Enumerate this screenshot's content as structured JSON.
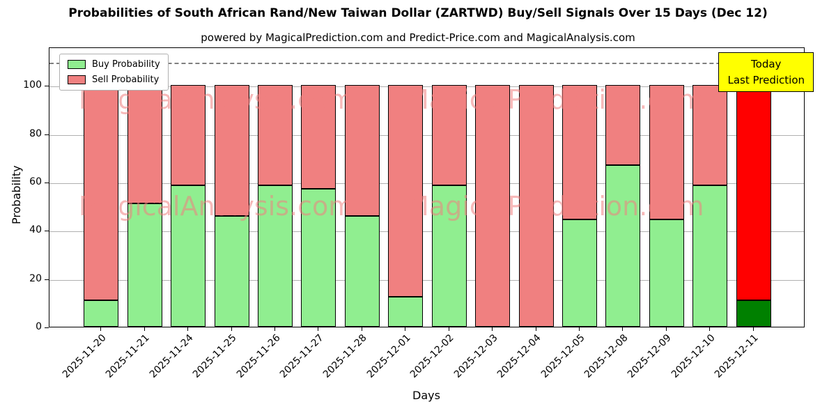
{
  "title": "Probabilities of South African Rand/New Taiwan Dollar (ZARTWD) Buy/Sell Signals Over 15 Days (Dec 12)",
  "subtitle": "powered by MagicalPrediction.com and Predict-Price.com and MagicalAnalysis.com",
  "legend": {
    "buy": "Buy Probability",
    "sell": "Sell Probability"
  },
  "annotation": {
    "line1": "Today",
    "line2": "Last Prediction"
  },
  "watermarks": [
    "MagicalAnalysis.com",
    "MagicalPrediction.com"
  ],
  "colors": {
    "buy": "#90EE90",
    "sell": "#F08080",
    "today_buy": "#008000",
    "today_sell": "#FF0000",
    "annotation_bg": "#FFFF00",
    "grid": "#b0b0b0",
    "watermark": "#F08080"
  },
  "chart_data": {
    "type": "bar",
    "stacked": true,
    "title": "Probabilities of South African Rand/New Taiwan Dollar (ZARTWD) Buy/Sell Signals Over 15 Days (Dec 12)",
    "xlabel": "Days",
    "ylabel": "Probability",
    "categories": [
      "2025-11-20",
      "2025-11-21",
      "2025-11-24",
      "2025-11-25",
      "2025-11-26",
      "2025-11-27",
      "2025-11-28",
      "2025-12-01",
      "2025-12-02",
      "2025-12-03",
      "2025-12-04",
      "2025-12-05",
      "2025-12-08",
      "2025-12-09",
      "2025-12-10",
      "2025-12-11"
    ],
    "series": [
      {
        "name": "Buy Probability",
        "color": "#90EE90",
        "values": [
          11,
          51,
          58.5,
          46,
          58.5,
          57,
          46,
          12.5,
          58.5,
          0,
          0,
          44.5,
          67,
          44.5,
          58.5,
          11
        ]
      },
      {
        "name": "Sell Probability",
        "color": "#F08080",
        "values": [
          89,
          49,
          41.5,
          54,
          41.5,
          43,
          54,
          87.5,
          41.5,
          100,
          100,
          55.5,
          33,
          55.5,
          41.5,
          99
        ]
      }
    ],
    "today": {
      "index": 15,
      "buy_color": "#008000",
      "sell_color": "#FF0000",
      "total": 110
    },
    "ylim": [
      0,
      116
    ],
    "yticks": [
      0,
      20,
      40,
      60,
      80,
      100
    ],
    "dashed_line_y": 110,
    "grid": true,
    "legend_position": "upper left"
  }
}
